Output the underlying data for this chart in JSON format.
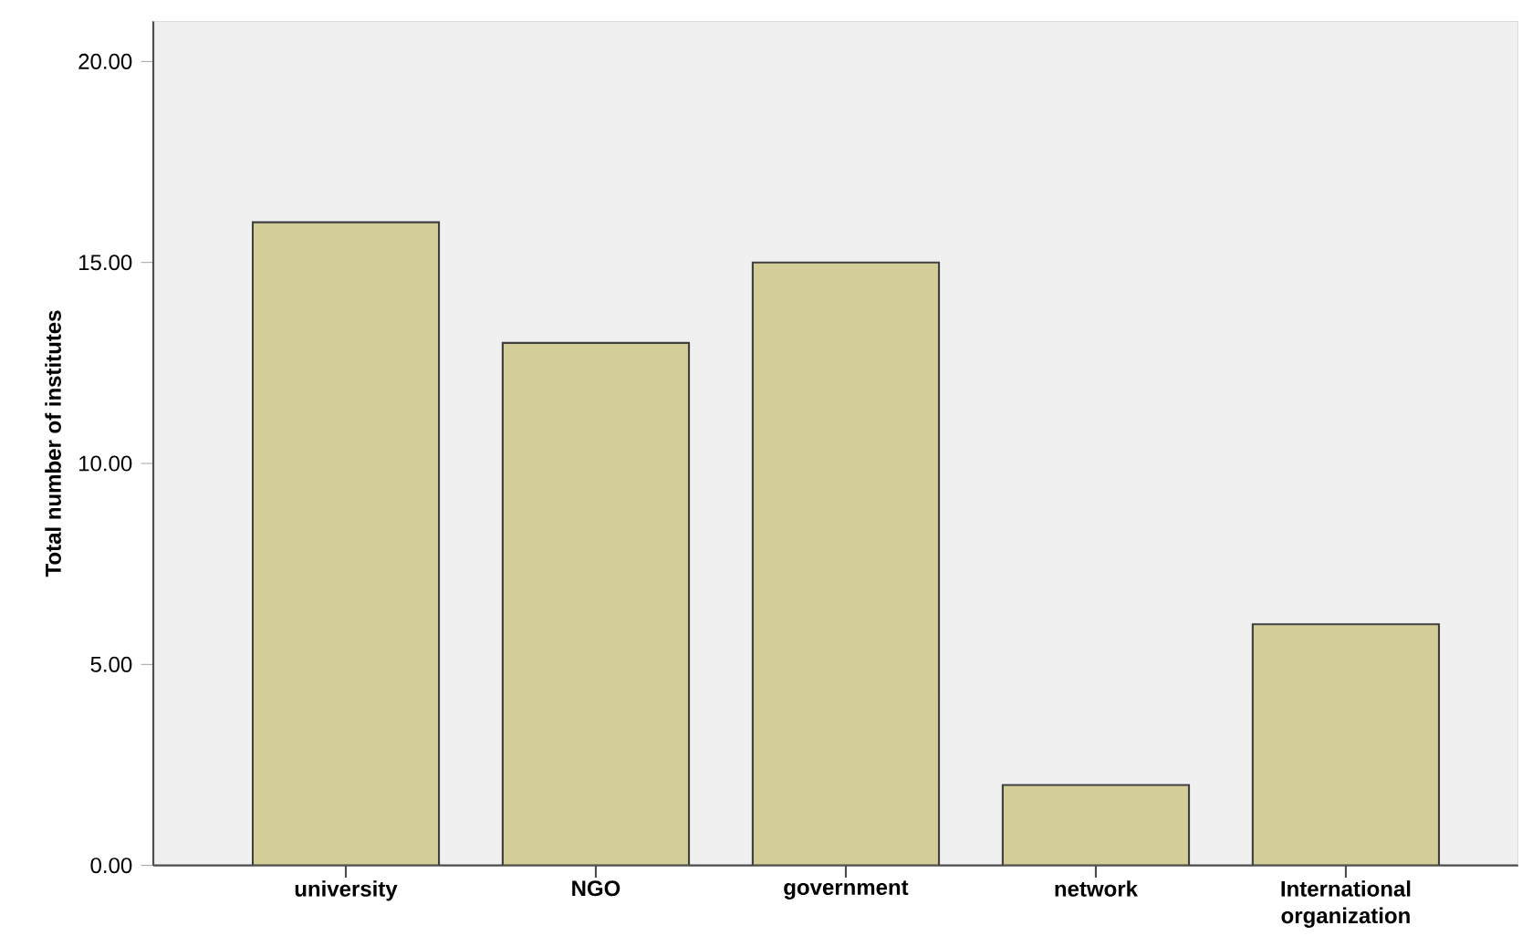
{
  "chart_data": {
    "type": "bar",
    "ylabel": "Total number of institutes",
    "categories": [
      "university",
      "NGO",
      "government",
      "network",
      "International organization"
    ],
    "values": [
      16,
      13,
      15,
      2,
      6
    ],
    "color": "#d3cd97",
    "ylim": [
      0,
      21
    ],
    "yticks": [
      {
        "value": 0,
        "label": "0.00"
      },
      {
        "value": 5,
        "label": "5.00"
      },
      {
        "value": 10,
        "label": "10.00"
      },
      {
        "value": 15,
        "label": "15.00"
      },
      {
        "value": 20,
        "label": "20.00"
      }
    ]
  }
}
